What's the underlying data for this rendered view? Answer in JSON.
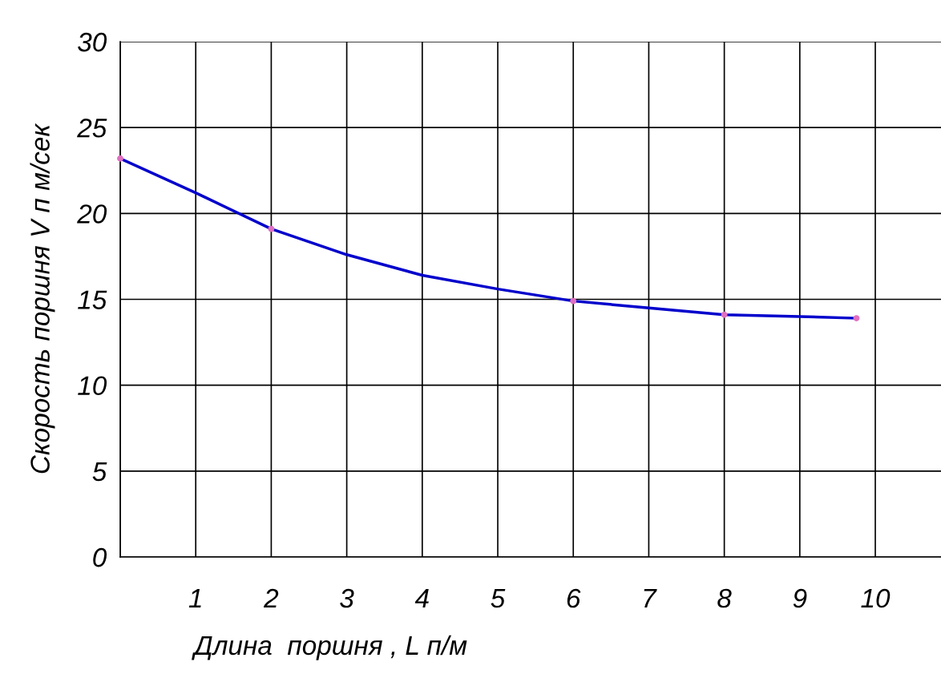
{
  "chart_data": {
    "type": "line",
    "xlabel": "Длина  поршня , L п/м",
    "ylabel": "Скорость поршня V п м/сек",
    "xlim": [
      0,
      10.87
    ],
    "xticks": [
      {
        "value": 0,
        "label": null
      },
      1,
      2,
      3,
      4,
      5,
      6,
      7,
      8,
      9,
      10
    ],
    "ylim": [
      0,
      30
    ],
    "yticks": [
      0,
      5,
      10,
      15,
      20,
      25,
      30
    ],
    "grid": true,
    "series": [
      {
        "color": "#0000cc",
        "marker": "none",
        "x": [
          0,
          1,
          2,
          3,
          4,
          5,
          6,
          7,
          8,
          9,
          9.75
        ],
        "values": [
          23.2,
          21.2,
          19.1,
          17.6,
          16.4,
          15.6,
          14.9,
          14.5,
          14.1,
          14.0,
          13.9
        ]
      },
      {
        "type": "scatter",
        "color": "#e070c0",
        "marker": "circle",
        "x": [
          0,
          2,
          6,
          8,
          9.75
        ],
        "values": [
          23.2,
          19.1,
          14.9,
          14.1,
          13.9
        ]
      }
    ]
  }
}
